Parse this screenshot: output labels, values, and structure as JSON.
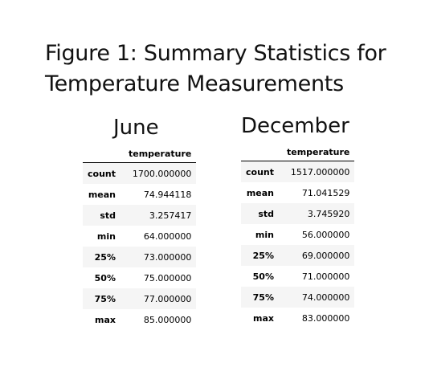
{
  "figure": {
    "title": "Figure 1: Summary Statistics for Temperature Measurements"
  },
  "panels": [
    {
      "heading": "June",
      "column_header": "temperature",
      "rows": [
        {
          "label": "count",
          "value": "1700.000000"
        },
        {
          "label": "mean",
          "value": "74.944118"
        },
        {
          "label": "std",
          "value": "3.257417"
        },
        {
          "label": "min",
          "value": "64.000000"
        },
        {
          "label": "25%",
          "value": "73.000000"
        },
        {
          "label": "50%",
          "value": "75.000000"
        },
        {
          "label": "75%",
          "value": "77.000000"
        },
        {
          "label": "max",
          "value": "85.000000"
        }
      ]
    },
    {
      "heading": "December",
      "column_header": "temperature",
      "rows": [
        {
          "label": "count",
          "value": "1517.000000"
        },
        {
          "label": "mean",
          "value": "71.041529"
        },
        {
          "label": "std",
          "value": "3.745920"
        },
        {
          "label": "min",
          "value": "56.000000"
        },
        {
          "label": "25%",
          "value": "69.000000"
        },
        {
          "label": "50%",
          "value": "71.000000"
        },
        {
          "label": "75%",
          "value": "74.000000"
        },
        {
          "label": "max",
          "value": "83.000000"
        }
      ]
    }
  ]
}
